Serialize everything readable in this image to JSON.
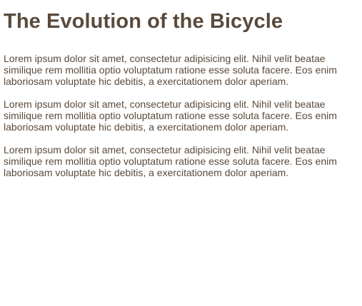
{
  "article": {
    "title": "The Evolution of the Bicycle",
    "paragraphs": [
      "Lorem ipsum dolor sit amet, consectetur adipisicing elit. Nihil velit beatae similique rem mollitia optio voluptatum ratione esse soluta facere. Eos enim laboriosam voluptate hic debitis, a exercitationem dolor aperiam.",
      "Lorem ipsum dolor sit amet, consectetur adipisicing elit. Nihil velit beatae similique rem mollitia optio voluptatum ratione esse soluta facere. Eos enim laboriosam voluptate hic debitis, a exercitationem dolor aperiam.",
      "Lorem ipsum dolor sit amet, consectetur adipisicing elit. Nihil velit beatae similique rem mollitia optio voluptatum ratione esse soluta facere. Eos enim laboriosam voluptate hic debitis, a exercitationem dolor aperiam."
    ]
  },
  "colors": {
    "text": "#5a4a3c",
    "background": "#ffffff"
  }
}
